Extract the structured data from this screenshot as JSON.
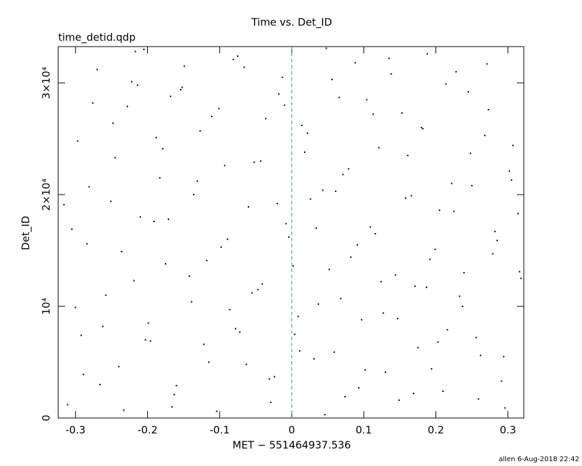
{
  "chart_data": {
    "type": "scatter",
    "title": "Time vs. Det_ID",
    "subtitle": "time_detid.qdp",
    "xlabel": "MET − 551464937.536",
    "ylabel": "Det_ID",
    "footer": "allen  6-Aug-2018 22:42",
    "color": "#000000",
    "xlim": [
      -0.324,
      0.322
    ],
    "ylim": [
      0,
      33250
    ],
    "xticks": [
      -0.3,
      -0.2,
      -0.1,
      0,
      0.1,
      0.2,
      0.3
    ],
    "yticks": [
      0,
      {
        "value": 10000,
        "label": "10⁴"
      },
      {
        "value": 20000,
        "label": "2×10⁴"
      },
      {
        "value": 30000,
        "label": "3×10⁴"
      }
    ],
    "vlines": [
      {
        "x": 0,
        "color": "#00a0c0"
      }
    ],
    "x": [
      -0.311,
      -0.297,
      -0.284,
      -0.27,
      -0.262,
      -0.251,
      -0.24,
      -0.228,
      -0.219,
      -0.205,
      -0.196,
      -0.183,
      -0.171,
      -0.16,
      -0.152,
      -0.139,
      -0.127,
      -0.118,
      -0.104,
      -0.093,
      -0.081,
      -0.072,
      -0.06,
      -0.047,
      -0.036,
      -0.024,
      -0.013,
      -0.004,
      0.009,
      0.018,
      0.031,
      0.043,
      0.052,
      0.066,
      0.074,
      0.088,
      0.097,
      0.109,
      0.121,
      0.13,
      0.144,
      0.153,
      0.166,
      0.175,
      0.188,
      0.199,
      0.21,
      0.222,
      0.233,
      0.245,
      0.256,
      0.268,
      0.279,
      0.291,
      0.302,
      0.314,
      -0.305,
      -0.289,
      -0.276,
      -0.258,
      -0.245,
      -0.233,
      -0.222,
      -0.21,
      -0.199,
      -0.188,
      -0.175,
      -0.163,
      -0.149,
      -0.136,
      -0.122,
      -0.111,
      -0.098,
      -0.086,
      -0.075,
      -0.063,
      -0.052,
      -0.041,
      -0.029,
      -0.018,
      -0.008,
      0.004,
      0.014,
      0.026,
      0.037,
      0.048,
      0.059,
      0.071,
      0.082,
      0.093,
      0.104,
      0.116,
      0.127,
      0.138,
      0.149,
      0.161,
      0.171,
      0.182,
      0.194,
      0.205,
      0.216,
      0.228,
      0.239,
      0.25,
      0.262,
      0.273,
      0.285,
      0.296,
      0.307,
      0.318,
      -0.316,
      -0.214,
      -0.3,
      -0.281,
      -0.266,
      -0.248,
      -0.236,
      -0.217,
      -0.203,
      -0.191,
      -0.179,
      -0.166,
      -0.154,
      -0.142,
      -0.131,
      -0.115,
      -0.101,
      -0.089,
      -0.078,
      -0.066,
      -0.055,
      -0.043,
      -0.031,
      -0.02,
      -0.01,
      0.002,
      0.011,
      0.022,
      0.034,
      0.046,
      0.056,
      0.068,
      0.079,
      0.091,
      0.102,
      0.113,
      0.124,
      0.135,
      0.147,
      0.158,
      0.169,
      0.18,
      0.192,
      0.203,
      0.214,
      0.225,
      0.237,
      0.248,
      0.259,
      0.271,
      0.282,
      0.294,
      0.305,
      0.316,
      -0.292,
      -0.168,
      0.061,
      0.187
    ],
    "y": [
      1200,
      24800,
      15600,
      31200,
      8200,
      19400,
      4600,
      27900,
      12300,
      33000,
      6900,
      21500,
      17800,
      2900,
      29600,
      10400,
      25700,
      14100,
      600,
      22600,
      32100,
      7700,
      18900,
      11500,
      26800,
      3700,
      30500,
      16200,
      9100,
      23800,
      5300,
      20400,
      13300,
      28700,
      1900,
      31800,
      8800,
      17100,
      24200,
      4100,
      12800,
      27300,
      19900,
      6300,
      32600,
      15100,
      2400,
      21000,
      10900,
      29200,
      7200,
      25300,
      14700,
      3300,
      22100,
      18300,
      16900,
      3900,
      28200,
      11000,
      23300,
      700,
      30100,
      18000,
      8500,
      25100,
      13800,
      2100,
      31500,
      20000,
      6600,
      27000,
      15300,
      9700,
      32400,
      4800,
      22900,
      12000,
      1400,
      29000,
      17400,
      7500,
      26200,
      19600,
      10200,
      33100,
      5900,
      21800,
      14400,
      2700,
      28500,
      16500,
      9400,
      30800,
      1600,
      23500,
      11800,
      25900,
      4400,
      18600,
      7900,
      31000,
      13000,
      20800,
      5600,
      27600,
      15900,
      900,
      24400,
      12500,
      19100,
      29800,
      9900,
      20700,
      3000,
      26400,
      14900,
      32800,
      7000,
      17600,
      24100,
      1000,
      29400,
      12700,
      21200,
      5000,
      27700,
      16000,
      8000,
      31400,
      11200,
      23000,
      3500,
      19200,
      28000,
      13600,
      6000,
      25500,
      17000,
      300,
      30300,
      10700,
      22300,
      15500,
      4300,
      27200,
      12200,
      32200,
      8900,
      19700,
      2200,
      26000,
      14200,
      6800,
      29900,
      18500,
      10000,
      23700,
      1700,
      31700,
      16700,
      5500,
      21300,
      13100,
      7400,
      28800,
      20300,
      11700
    ]
  }
}
